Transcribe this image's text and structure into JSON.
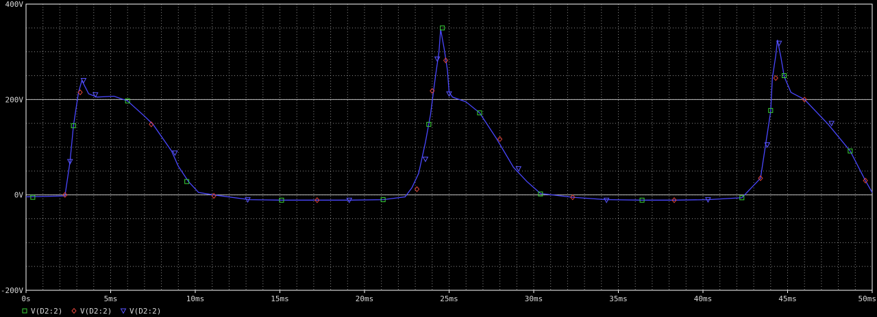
{
  "chart_data": {
    "type": "line",
    "title": "",
    "xlabel": "",
    "ylabel": "",
    "x_unit": "ms",
    "y_unit": "V",
    "xlim": [
      0,
      50
    ],
    "ylim": [
      -200,
      400
    ],
    "x_ticks": [
      0,
      5,
      10,
      15,
      20,
      25,
      30,
      35,
      40,
      45,
      50
    ],
    "x_tick_labels": [
      "0s",
      "5ms",
      "10ms",
      "15ms",
      "20ms",
      "25ms",
      "30ms",
      "35ms",
      "40ms",
      "45ms",
      "50ms"
    ],
    "y_ticks": [
      -200,
      0,
      200,
      400
    ],
    "y_tick_labels": [
      "-200V",
      "0V",
      "200V",
      "400V"
    ],
    "grid": true,
    "legend_position": "bottom-left",
    "colors": {
      "background": "#000000",
      "grid": "#c8c8c8",
      "trace": "#4a47ff",
      "square_marker": "#39d439",
      "diamond_marker": "#e0453a",
      "triangle_marker": "#5a55ff",
      "axis": "#ffffff",
      "text": "#d8d8d8"
    },
    "legend": [
      {
        "label": "V(D2:2)",
        "marker": "square"
      },
      {
        "label": "V(D2:2)",
        "marker": "diamond"
      },
      {
        "label": "V(D2:2)",
        "marker": "triangle"
      }
    ],
    "series": [
      {
        "name": "V(D2:2)",
        "x": [
          0.0,
          2.3,
          2.6,
          2.8,
          3.1,
          3.3,
          3.7,
          4.2,
          5.2,
          6.0,
          7.0,
          7.5,
          8.6,
          9.0,
          9.6,
          10.2,
          11.1,
          13.2,
          15.1,
          17.0,
          19.1,
          21.1,
          22.4,
          22.8,
          23.2,
          23.6,
          23.9,
          24.2,
          24.4,
          24.5,
          24.7,
          24.9,
          25.0,
          25.2,
          26.0,
          26.8,
          27.8,
          28.8,
          29.6,
          30.4,
          32.3,
          34.3,
          36.4,
          38.3,
          40.3,
          42.3,
          43.4,
          43.7,
          44.0,
          44.1,
          44.3,
          44.4,
          44.6,
          44.8,
          45.2,
          46.0,
          47.4,
          48.7,
          49.6,
          50.0
        ],
        "y": [
          -4,
          -2,
          70,
          145,
          215,
          240,
          212,
          205,
          207,
          197,
          165,
          148,
          92,
          60,
          28,
          5,
          0,
          -10,
          -11,
          -11,
          -11,
          -10,
          -4,
          15,
          45,
          110,
          168,
          250,
          300,
          347,
          308,
          262,
          215,
          205,
          195,
          172,
          118,
          58,
          28,
          3,
          -5,
          -10,
          -11,
          -11,
          -10,
          -6,
          35,
          105,
          175,
          245,
          292,
          325,
          290,
          248,
          215,
          200,
          148,
          92,
          30,
          5
        ]
      }
    ],
    "square_markers": [
      [
        0.4,
        -5
      ],
      [
        2.8,
        145
      ],
      [
        6.0,
        197
      ],
      [
        9.5,
        28
      ],
      [
        15.1,
        -11
      ],
      [
        21.1,
        -10
      ],
      [
        23.8,
        148
      ],
      [
        24.6,
        350
      ],
      [
        26.8,
        172
      ],
      [
        30.4,
        2
      ],
      [
        36.4,
        -11
      ],
      [
        42.3,
        -6
      ],
      [
        44.0,
        177
      ],
      [
        44.8,
        250
      ],
      [
        48.7,
        92
      ]
    ],
    "diamond_markers": [
      [
        2.3,
        0
      ],
      [
        3.2,
        215
      ],
      [
        7.4,
        148
      ],
      [
        11.1,
        -2
      ],
      [
        17.2,
        -11
      ],
      [
        23.1,
        12
      ],
      [
        24.0,
        218
      ],
      [
        24.8,
        282
      ],
      [
        28.0,
        117
      ],
      [
        32.3,
        -5
      ],
      [
        38.3,
        -11
      ],
      [
        43.4,
        35
      ],
      [
        44.3,
        245
      ],
      [
        46.0,
        200
      ],
      [
        49.6,
        30
      ]
    ],
    "triangle_markers": [
      [
        2.6,
        70
      ],
      [
        3.4,
        240
      ],
      [
        4.1,
        210
      ],
      [
        8.8,
        88
      ],
      [
        13.1,
        -10
      ],
      [
        19.1,
        -11
      ],
      [
        23.6,
        75
      ],
      [
        24.3,
        285
      ],
      [
        25.0,
        212
      ],
      [
        29.1,
        55
      ],
      [
        34.3,
        -11
      ],
      [
        40.3,
        -10
      ],
      [
        43.8,
        105
      ],
      [
        44.5,
        318
      ],
      [
        47.6,
        150
      ]
    ]
  }
}
